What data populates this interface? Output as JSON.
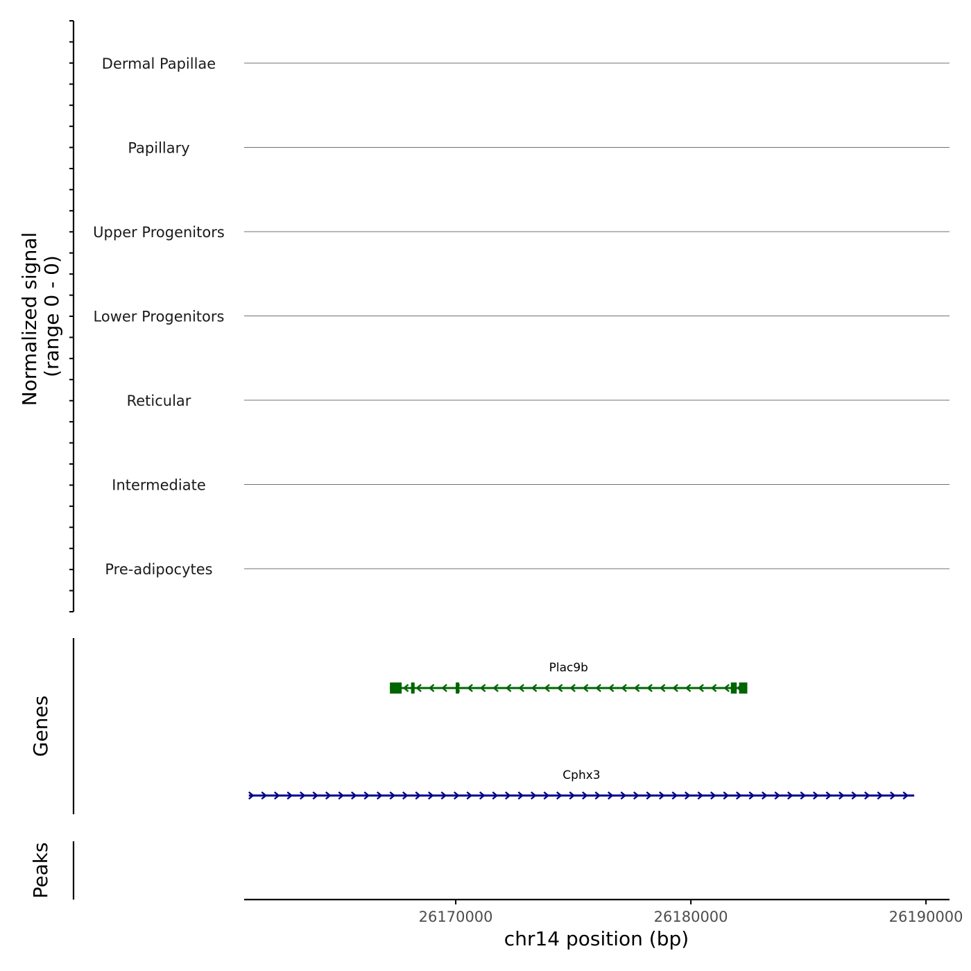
{
  "chart_data": {
    "type": "genome-track",
    "signal_track": {
      "ylabel_line1": "Normalized signal",
      "ylabel_line2": "(range 0 - 0)",
      "groups": [
        "Dermal Papillae",
        "Papillary",
        "Upper Progenitors",
        "Lower Progenitors",
        "Reticular",
        "Intermediate",
        "Pre-adipocytes"
      ],
      "values": [
        0,
        0,
        0,
        0,
        0,
        0,
        0
      ]
    },
    "genes_track": {
      "label": "Genes",
      "genes": [
        {
          "name": "Plac9b",
          "strand": "-",
          "start": 26167200,
          "end": 26182400,
          "color": "#006400",
          "exons": [
            [
              26167200,
              26167700
            ],
            [
              26168100,
              26168250
            ],
            [
              26170000,
              26170150
            ],
            [
              26181700,
              26181950
            ],
            [
              26182050,
              26182400
            ]
          ]
        },
        {
          "name": "Cphx3",
          "strand": "+",
          "start": 26161200,
          "end": 26189500,
          "color": "#00008B",
          "exons": []
        }
      ]
    },
    "peaks_track": {
      "label": "Peaks",
      "peaks": []
    },
    "x_axis": {
      "label": "chr14 position (bp)",
      "ticks": [
        26170000,
        26180000,
        26190000
      ],
      "tick_labels": [
        "26170000",
        "26180000",
        "26190000"
      ],
      "xlim": [
        26161000,
        26191000
      ]
    },
    "colors": {
      "baseline": "#707070",
      "axis": "#000000"
    }
  }
}
